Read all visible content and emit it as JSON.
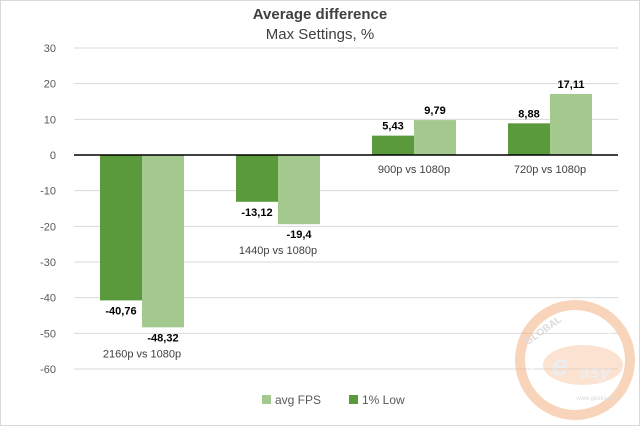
{
  "chart_data": {
    "type": "bar",
    "title": "Average difference",
    "subtitle": "Max Settings, %",
    "categories": [
      "2160p vs 1080p",
      "1440p vs 1080p",
      "900p vs 1080p",
      "720p vs 1080p"
    ],
    "series": [
      {
        "name": "1% Low",
        "values": [
          -40.76,
          -13.12,
          5.43,
          8.88
        ],
        "labels": [
          "-40,76",
          "-13,12",
          "5,43",
          "8,88"
        ],
        "color": "#5b9a3c"
      },
      {
        "name": "avg FPS",
        "values": [
          -48.32,
          -19.4,
          9.79,
          17.11
        ],
        "labels": [
          "-48,32",
          "-19,4",
          "9,79",
          "17,11"
        ],
        "color": "#a3c98e"
      }
    ],
    "ylim": [
      -60,
      30
    ],
    "yticks": [
      30,
      20,
      10,
      0,
      -10,
      -20,
      -30,
      -40,
      -50,
      -60
    ],
    "grid": true,
    "legend": {
      "placement": "bottom",
      "order": [
        "avg FPS",
        "1% Low"
      ]
    },
    "watermark": "GLOBAL easy www.geeks.com"
  }
}
